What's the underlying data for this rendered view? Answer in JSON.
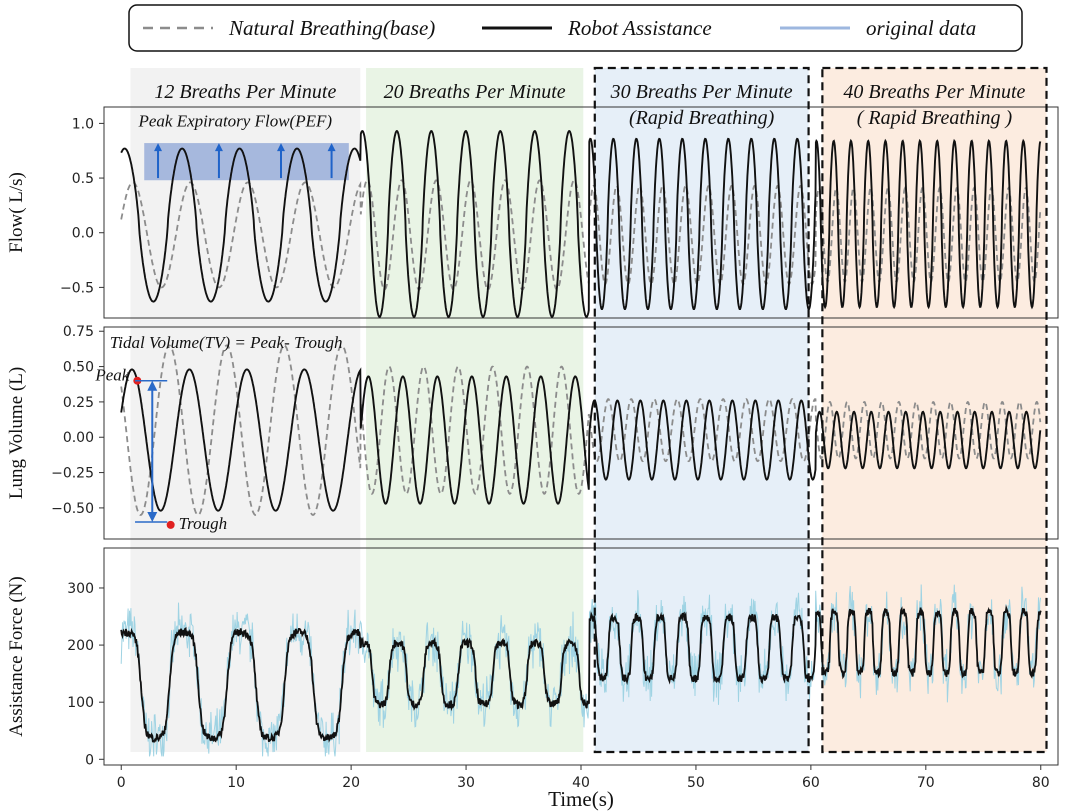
{
  "chart_data": {
    "type": "line",
    "xlabel": "Time(s)",
    "x_ticks": [
      "0",
      "10",
      "20",
      "30",
      "40",
      "50",
      "60",
      "70",
      "80"
    ],
    "xlim": [
      -1.5,
      81.5
    ],
    "legend": {
      "placement": "top",
      "entries": [
        {
          "label": "Natural Breathing(base)",
          "style": "dashed",
          "color": "#8c8c8c"
        },
        {
          "label": "Robot Assistance",
          "style": "solid",
          "color": "#111111"
        },
        {
          "label": "original data",
          "style": "solid",
          "color": "#9db7df"
        }
      ]
    },
    "phases": [
      {
        "label": "12 Breaths Per Minute",
        "sublabel": "",
        "start": 0.8,
        "end": 20.8,
        "color": "#ededed",
        "breaths_per_minute": 12,
        "dashed_box": false
      },
      {
        "label": "20 Breaths Per Minute",
        "sublabel": "",
        "start": 21.3,
        "end": 40.2,
        "color": "#e2f0dc",
        "breaths_per_minute": 20,
        "dashed_box": false
      },
      {
        "label": "30 Breaths Per Minute",
        "sublabel": "(Rapid Breathing)",
        "start": 41.2,
        "end": 59.8,
        "color": "#dde9f6",
        "breaths_per_minute": 30,
        "dashed_box": true
      },
      {
        "label": "40 Breaths Per Minute",
        "sublabel": "( Rapid Breathing )",
        "start": 61.0,
        "end": 80.5,
        "color": "#fbe6d6",
        "breaths_per_minute": 40,
        "dashed_box": true
      }
    ],
    "panels": [
      {
        "id": "flow",
        "ylabel": "Flow( L/s)",
        "ylim": [
          -0.78,
          1.15
        ],
        "y_ticks": [
          1.0,
          0.5,
          0.0,
          -0.5
        ],
        "y_tick_labels": [
          "1.0",
          "0.5",
          "0.0",
          "−0.5"
        ],
        "series": [
          {
            "name": "Natural Breathing(base)",
            "style": "dashed",
            "amplitudes": [
              0.48,
              0.5,
              0.45,
              0.43
            ],
            "offset": -0.02
          },
          {
            "name": "Robot Assistance",
            "style": "solid",
            "amplitudes": [
              0.7,
              0.85,
              0.78,
              0.76
            ],
            "offset": 0.12
          }
        ],
        "annotations": [
          {
            "text": "Peak Expiratory Flow(PEF)",
            "x": 1.5,
            "y": 0.97
          },
          {
            "type": "band",
            "x_from": 2.0,
            "x_to": 19.8,
            "y_from": 0.48,
            "y_to": 0.82,
            "color": "#4a72c4"
          },
          {
            "type": "arrows",
            "x_values": [
              3.2,
              8.5,
              13.9,
              18.3
            ],
            "y_from": 0.5,
            "y_to": 0.82,
            "color": "#1f63c9"
          }
        ]
      },
      {
        "id": "volume",
        "ylabel": "Lung Volume (L)",
        "ylim": [
          -0.72,
          0.78
        ],
        "y_ticks": [
          0.75,
          0.5,
          0.25,
          0.0,
          -0.25,
          -0.5
        ],
        "y_tick_labels": [
          "0.75",
          "0.50",
          "0.25",
          "0.00",
          "−0.25",
          "−0.50"
        ],
        "series": [
          {
            "name": "Natural Breathing(base)",
            "style": "dashed",
            "amplitudes": [
              0.6,
              0.45,
              0.22,
              0.2
            ],
            "offset": 0.05
          },
          {
            "name": "Robot Assistance",
            "style": "solid",
            "amplitudes": [
              0.5,
              0.45,
              0.28,
              0.2
            ],
            "offset": -0.02
          }
        ],
        "annotations": [
          {
            "text": "Tidal Volume(TV) = Peak- Trough",
            "x": -1.0,
            "y": 0.63
          },
          {
            "text": "Peak",
            "x": 0.0,
            "y": 0.4,
            "value": 0.4
          },
          {
            "text": "Trough",
            "x": 4.3,
            "y": -0.62,
            "value": -0.62
          },
          {
            "type": "arrow",
            "x": 2.7,
            "y_from": 0.4,
            "y_to": -0.6,
            "color": "#2a6ac8"
          }
        ]
      },
      {
        "id": "force",
        "ylabel": "Assistance Force (N)",
        "ylim": [
          -10,
          370
        ],
        "y_ticks": [
          300,
          200,
          100,
          0
        ],
        "y_tick_labels": [
          "300",
          "200",
          "100",
          "0"
        ],
        "series": [
          {
            "name": "original data",
            "style": "solid",
            "noise_amplitude": 35
          },
          {
            "name": "Robot Assistance",
            "style": "solid",
            "center": [
              130,
              150,
              195,
              205
            ],
            "amplitudes": [
              95,
              55,
              55,
              55
            ]
          }
        ],
        "annotations": []
      }
    ]
  }
}
